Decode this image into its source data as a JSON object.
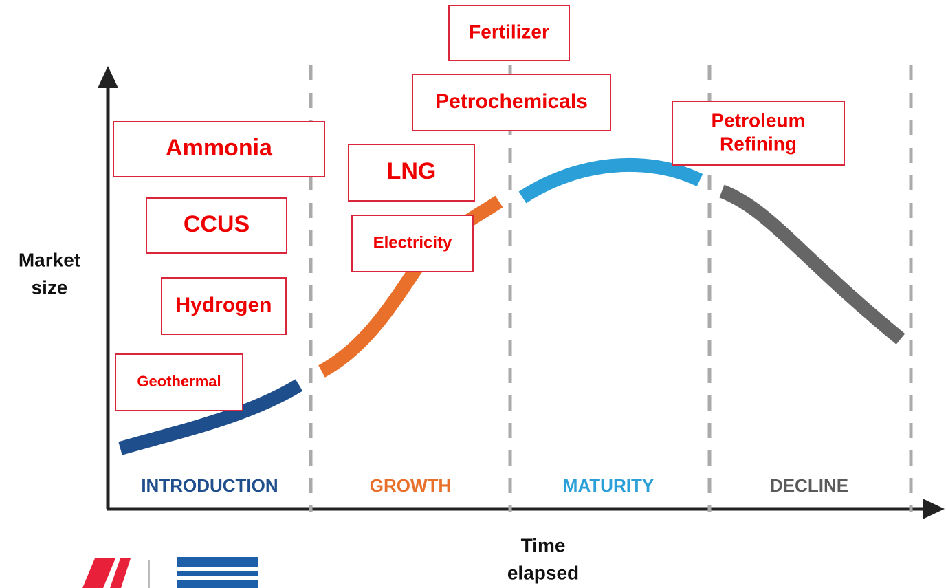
{
  "axes": {
    "y_label": [
      "Market",
      "size"
    ],
    "x_label": [
      "Time",
      "elapsed"
    ]
  },
  "stages": [
    {
      "name": "INTRODUCTION",
      "color": "#1f4e8c"
    },
    {
      "name": "GROWTH",
      "color": "#e8702a"
    },
    {
      "name": "MATURITY",
      "color": "#2b9fd8"
    },
    {
      "name": "DECLINE",
      "color": "#5a5a5a"
    }
  ],
  "labels": [
    {
      "lines": [
        "Fertilizer"
      ]
    },
    {
      "lines": [
        "Petrochemicals"
      ]
    },
    {
      "lines": [
        "Petroleum",
        "Refining"
      ]
    },
    {
      "lines": [
        "Ammonia"
      ]
    },
    {
      "lines": [
        "LNG"
      ]
    },
    {
      "lines": [
        "CCUS"
      ]
    },
    {
      "lines": [
        "Electricity"
      ]
    },
    {
      "lines": [
        "Hydrogen"
      ]
    },
    {
      "lines": [
        "Geothermal"
      ]
    }
  ]
}
